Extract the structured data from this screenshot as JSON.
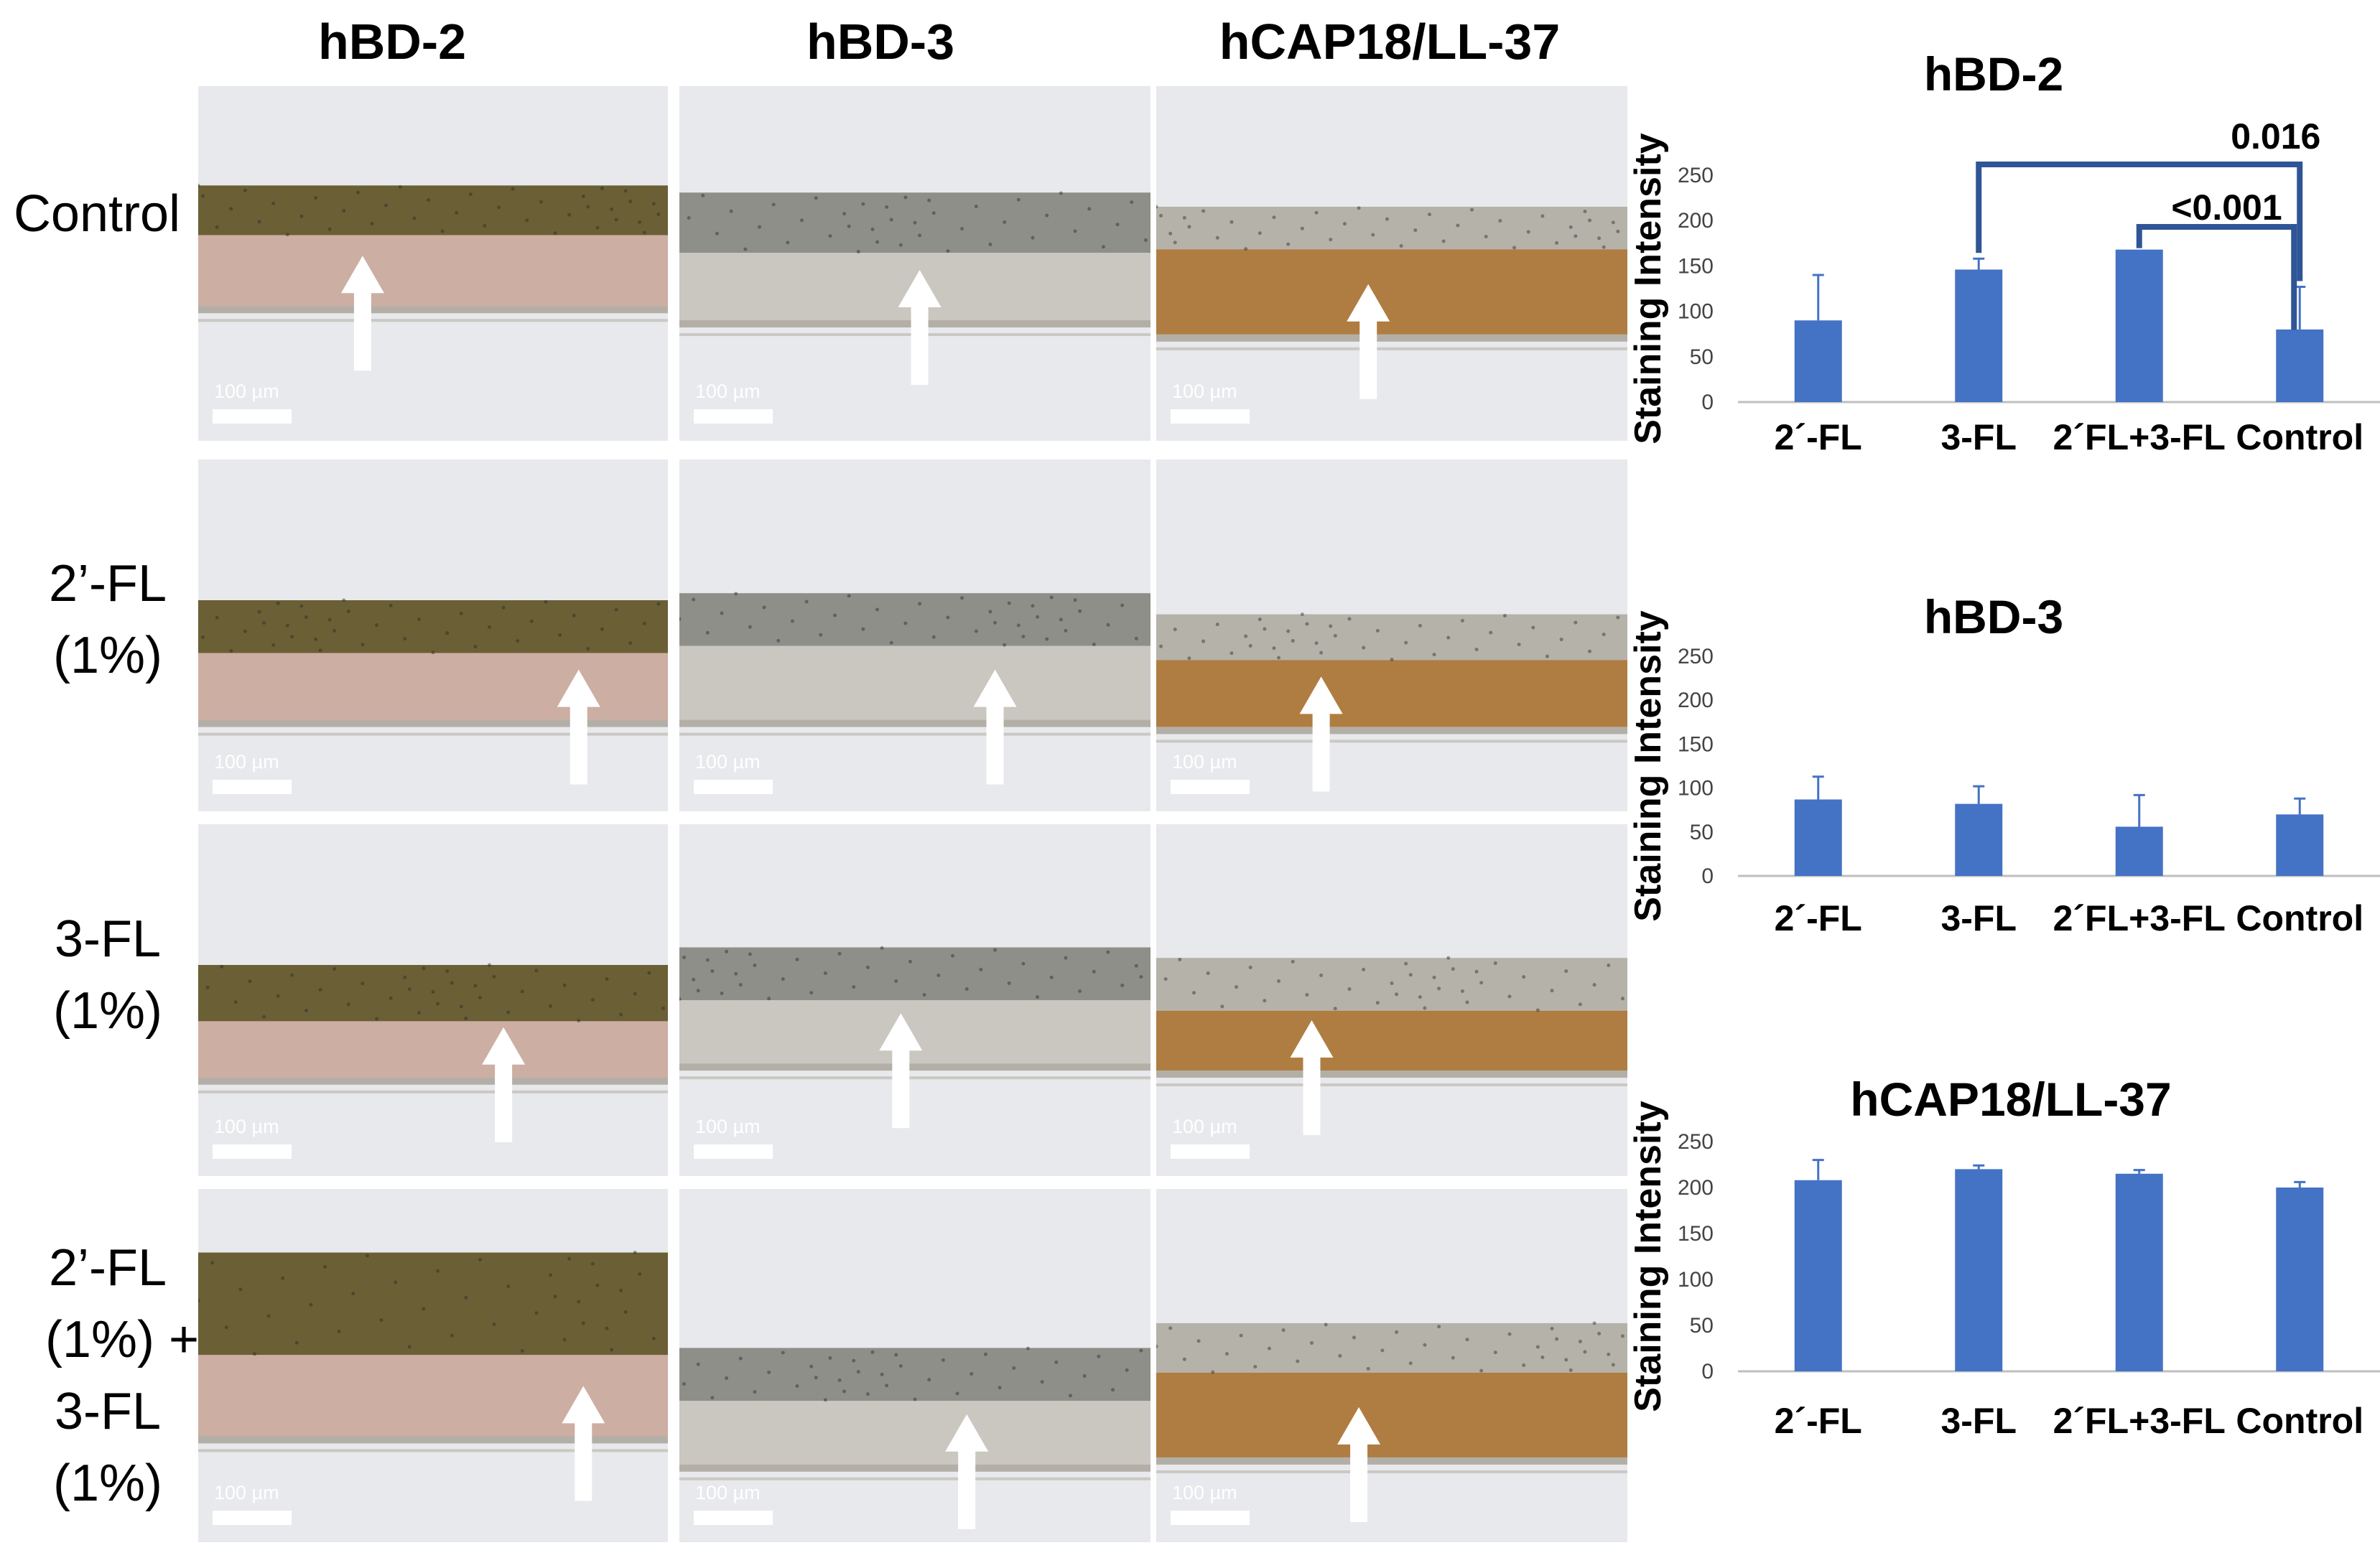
{
  "columns": [
    "hBD-2",
    "hBD-3",
    "hCAP18/LL-37"
  ],
  "rows": [
    {
      "label_lines": [
        "Control"
      ]
    },
    {
      "label_lines": [
        "2’-FL",
        "(1%)"
      ]
    },
    {
      "label_lines": [
        "3-FL",
        "(1%)"
      ]
    },
    {
      "label_lines": [
        "2’-FL",
        "(1%) +",
        "3-FL",
        "(1%)"
      ]
    }
  ],
  "scale_bar_label": "100 µm",
  "colors": {
    "bar": "#4472c4",
    "bracket": "#2f5597",
    "hbd2_top": "#6b5f35",
    "hbd2_tissue": "#c9a79a",
    "hbd3_top": "#8f8f8a",
    "hbd3_tissue": "#c6c3bb",
    "ll37_top": "#b5b2aa",
    "ll37_tissue": "#a8712f",
    "background": "#e8e9ec",
    "arrow": "#ffffff"
  },
  "chart_data": [
    {
      "type": "bar",
      "title": "hBD-2",
      "ylabel": "Staining Intensity",
      "categories": [
        "2´-FL",
        "3-FL",
        "2´FL+3-FL",
        "Control"
      ],
      "values": [
        90,
        146,
        168,
        80
      ],
      "errors": [
        50,
        12,
        0,
        47
      ],
      "ylim": [
        0,
        250
      ],
      "yticks": [
        0,
        50,
        100,
        150,
        200,
        250
      ],
      "annotations": [
        {
          "text": "0.016",
          "from": "3-FL",
          "to": "Control"
        },
        {
          "text": "<0.001",
          "from": "2´FL+3-FL",
          "to": "Control"
        }
      ]
    },
    {
      "type": "bar",
      "title": "hBD-3",
      "ylabel": "Staining Intensity",
      "categories": [
        "2´-FL",
        "3-FL",
        "2´FL+3-FL",
        "Control"
      ],
      "values": [
        87,
        82,
        56,
        70
      ],
      "errors": [
        26,
        20,
        36,
        18
      ],
      "ylim": [
        0,
        250
      ],
      "yticks": [
        0,
        50,
        100,
        150,
        200,
        250
      ],
      "annotations": []
    },
    {
      "type": "bar",
      "title": "hCAP18/LL-37",
      "ylabel": "Staining Intensity",
      "categories": [
        "2´-FL",
        "3-FL",
        "2´FL+3-FL",
        "Control"
      ],
      "values": [
        208,
        220,
        215,
        200
      ],
      "errors": [
        22,
        4,
        4,
        6
      ],
      "ylim": [
        0,
        250
      ],
      "yticks": [
        0,
        50,
        100,
        150,
        200,
        250
      ],
      "annotations": []
    }
  ]
}
